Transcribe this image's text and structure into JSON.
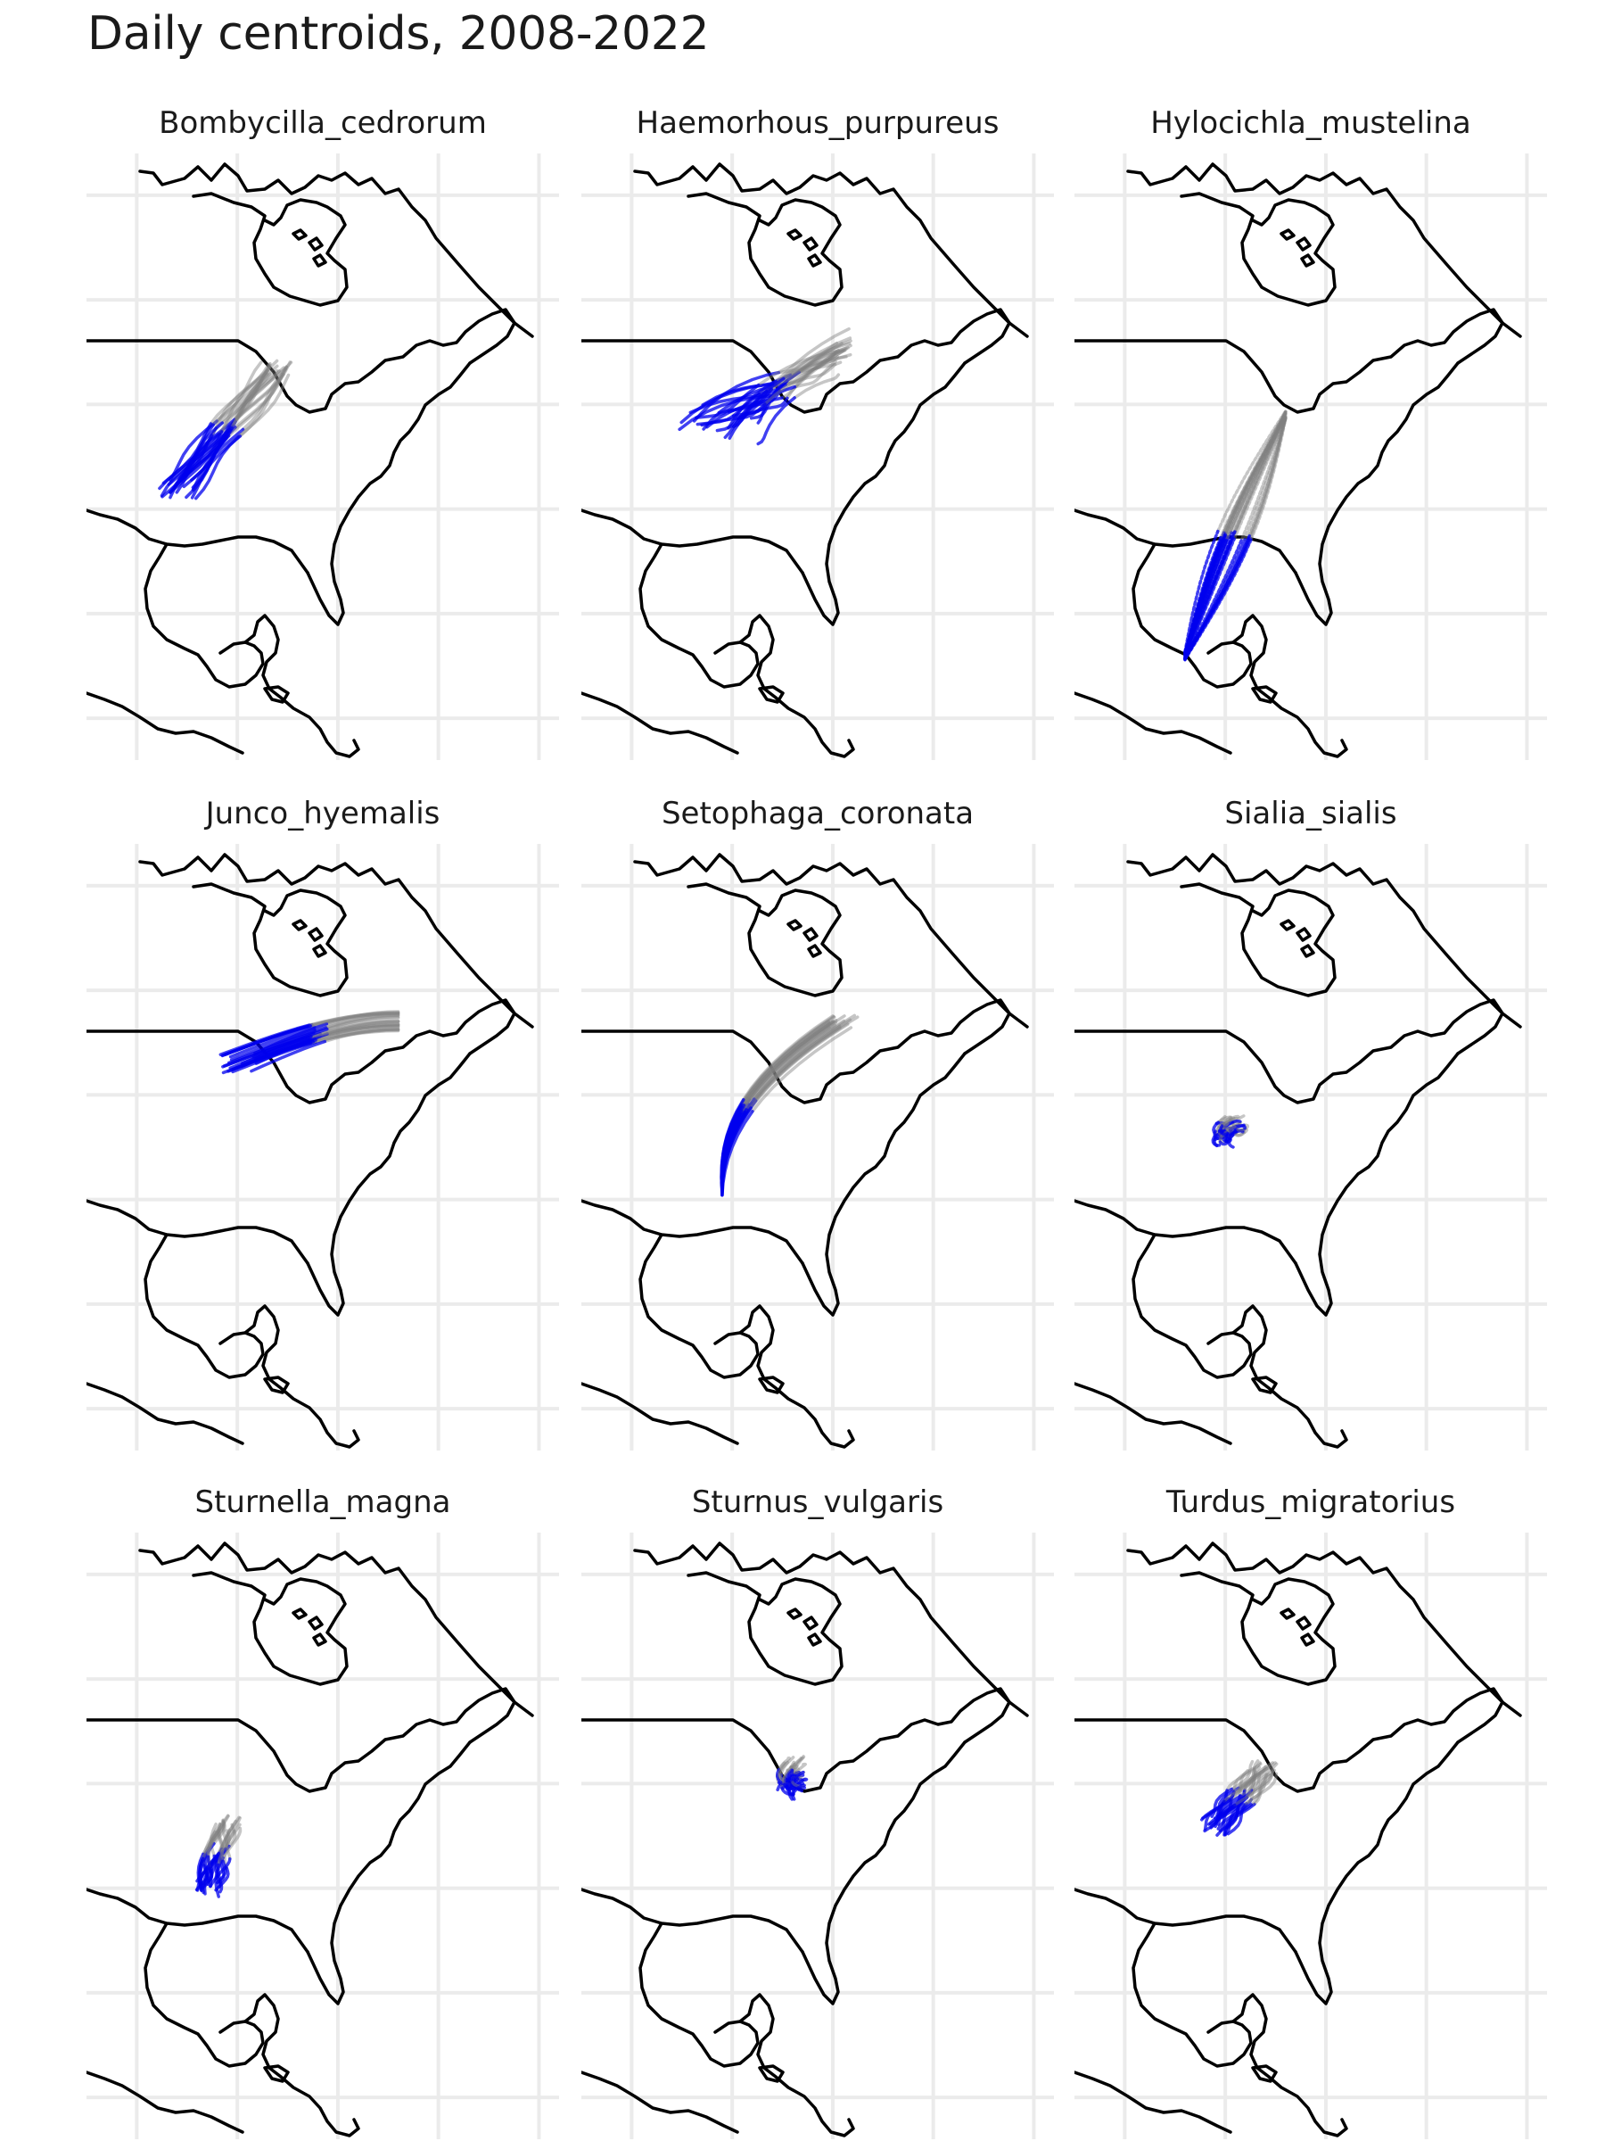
{
  "title": "Daily centroids, 2008-2022",
  "colors": {
    "background": "#ffffff",
    "grid": "#ebebeb",
    "coastline": "#000000",
    "track_late": "#808080",
    "track_early": "#0000ee"
  },
  "panels": [
    {
      "species": "Bombycilla_cedrorum",
      "pattern": "narrow-sw-ne",
      "from": [
        -91,
        32
      ],
      "to": [
        -81,
        43.5
      ]
    },
    {
      "species": "Haemorhous_purpureus",
      "pattern": "wide-sw-ne",
      "from": [
        -86,
        38
      ],
      "to": [
        -74,
        45
      ]
    },
    {
      "species": "Hylocichla_mustelina",
      "pattern": "long-migration",
      "from": [
        -89,
        16
      ],
      "to": [
        -79,
        39
      ]
    },
    {
      "species": "Junco_hyemalis",
      "pattern": "east-west",
      "from": [
        -85,
        43
      ],
      "to": [
        -69,
        47
      ]
    },
    {
      "species": "Setophaga_coronata",
      "pattern": "south-north",
      "from": [
        -86,
        31
      ],
      "to": [
        -74,
        47
      ]
    },
    {
      "species": "Sialia_sialis",
      "pattern": "cluster",
      "from": [
        -85,
        36
      ],
      "to": [
        -84,
        37
      ]
    },
    {
      "species": "Sturnella_magna",
      "pattern": "cluster-tall",
      "from": [
        -88,
        30
      ],
      "to": [
        -86,
        36
      ]
    },
    {
      "species": "Sturnus_vulgaris",
      "pattern": "cluster",
      "from": [
        -79,
        39.5
      ],
      "to": [
        -79,
        41.5
      ]
    },
    {
      "species": "Turdus_migratorius",
      "pattern": "narrow-sw-ne",
      "from": [
        -86,
        36
      ],
      "to": [
        -81,
        41.5
      ]
    }
  ]
}
